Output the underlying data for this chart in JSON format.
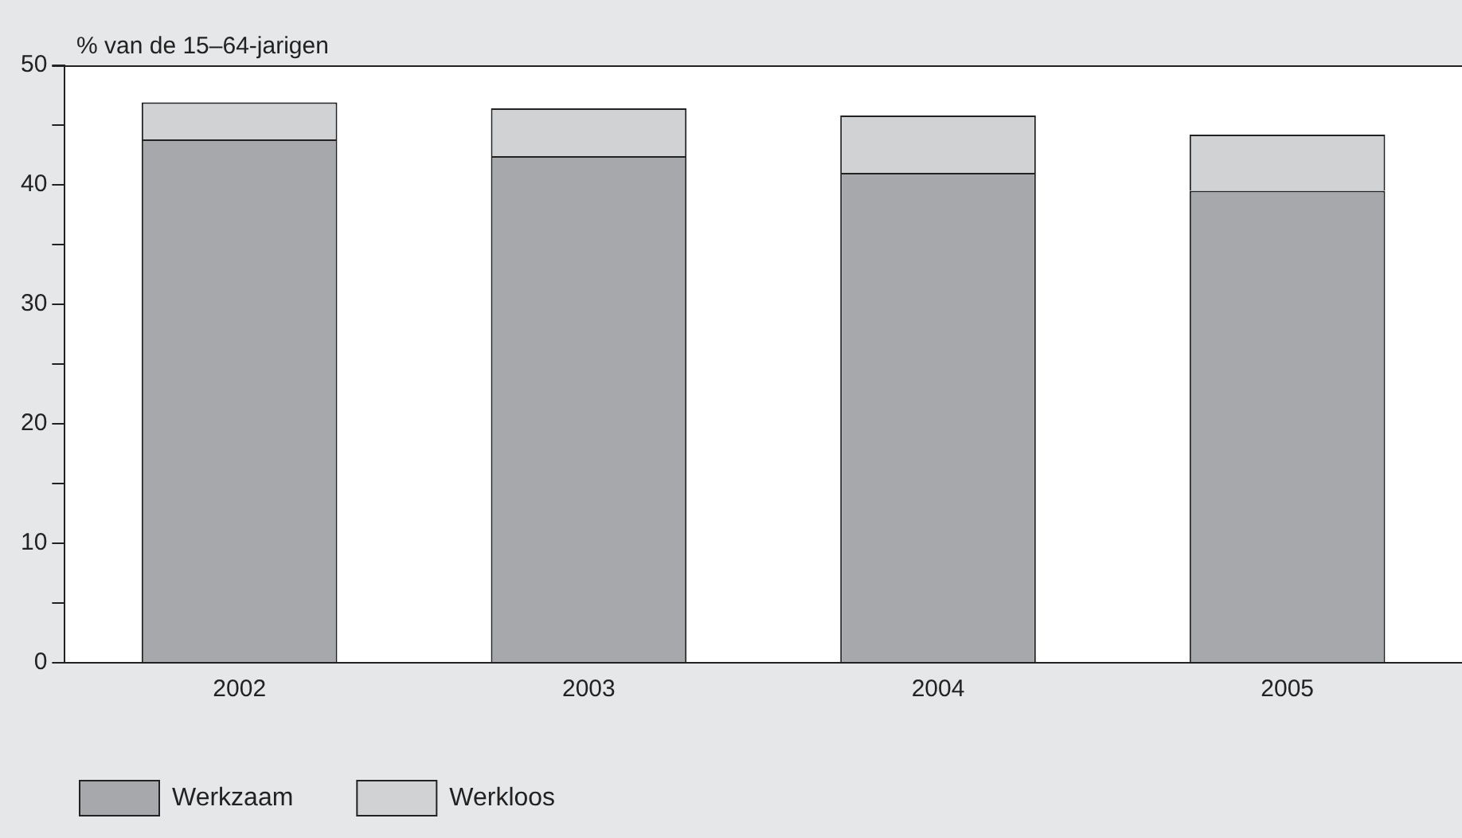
{
  "chart_data": {
    "type": "bar",
    "ylabel": "% van de 15–64-jarigen",
    "categories": [
      "2002",
      "2003",
      "2004",
      "2005"
    ],
    "series": [
      {
        "name": "Werkzaam",
        "color": "#a7a8ab",
        "values": [
          43.8,
          42.4,
          41.0,
          39.5
        ]
      },
      {
        "name": "Werkloos",
        "color": "#d1d2d4",
        "values": [
          3.1,
          4.0,
          4.8,
          4.7
        ]
      }
    ],
    "stacked": true,
    "ylim": [
      0,
      50
    ],
    "yticks": [
      0,
      {
        "value": 5,
        "label": null
      },
      10,
      {
        "value": 15,
        "label": null
      },
      20,
      {
        "value": 25,
        "label": null
      },
      30,
      {
        "value": 35,
        "label": null
      },
      40,
      {
        "value": 45,
        "label": null
      },
      50
    ],
    "grid": false,
    "legend": "bottom left"
  }
}
